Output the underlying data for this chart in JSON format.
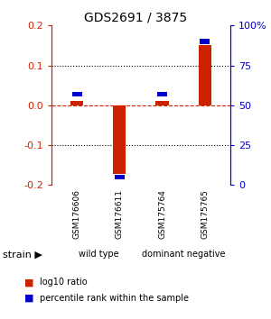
{
  "title": "GDS2691 / 3875",
  "samples": [
    "GSM176606",
    "GSM176611",
    "GSM175764",
    "GSM175765"
  ],
  "log10_ratio": [
    0.012,
    -0.172,
    0.012,
    0.152
  ],
  "percentile_rank": [
    57,
    5,
    57,
    90
  ],
  "groups": [
    {
      "label": "wild type",
      "start": 0,
      "end": 2,
      "color": "#90ee90"
    },
    {
      "label": "dominant negative",
      "start": 2,
      "end": 4,
      "color": "#66cc66"
    }
  ],
  "ylim_left": [
    -0.2,
    0.2
  ],
  "ylim_right": [
    0,
    100
  ],
  "yticks_left": [
    -0.2,
    -0.1,
    0.0,
    0.1,
    0.2
  ],
  "yticks_right": [
    0,
    25,
    50,
    75,
    100
  ],
  "yticklabels_right": [
    "0",
    "25",
    "50",
    "75",
    "100%"
  ],
  "red_color": "#cc2200",
  "blue_color": "#0000cc",
  "bg_color": "#ffffff",
  "sample_box_color": "#cccccc",
  "legend_items": [
    "log10 ratio",
    "percentile rank within the sample"
  ]
}
